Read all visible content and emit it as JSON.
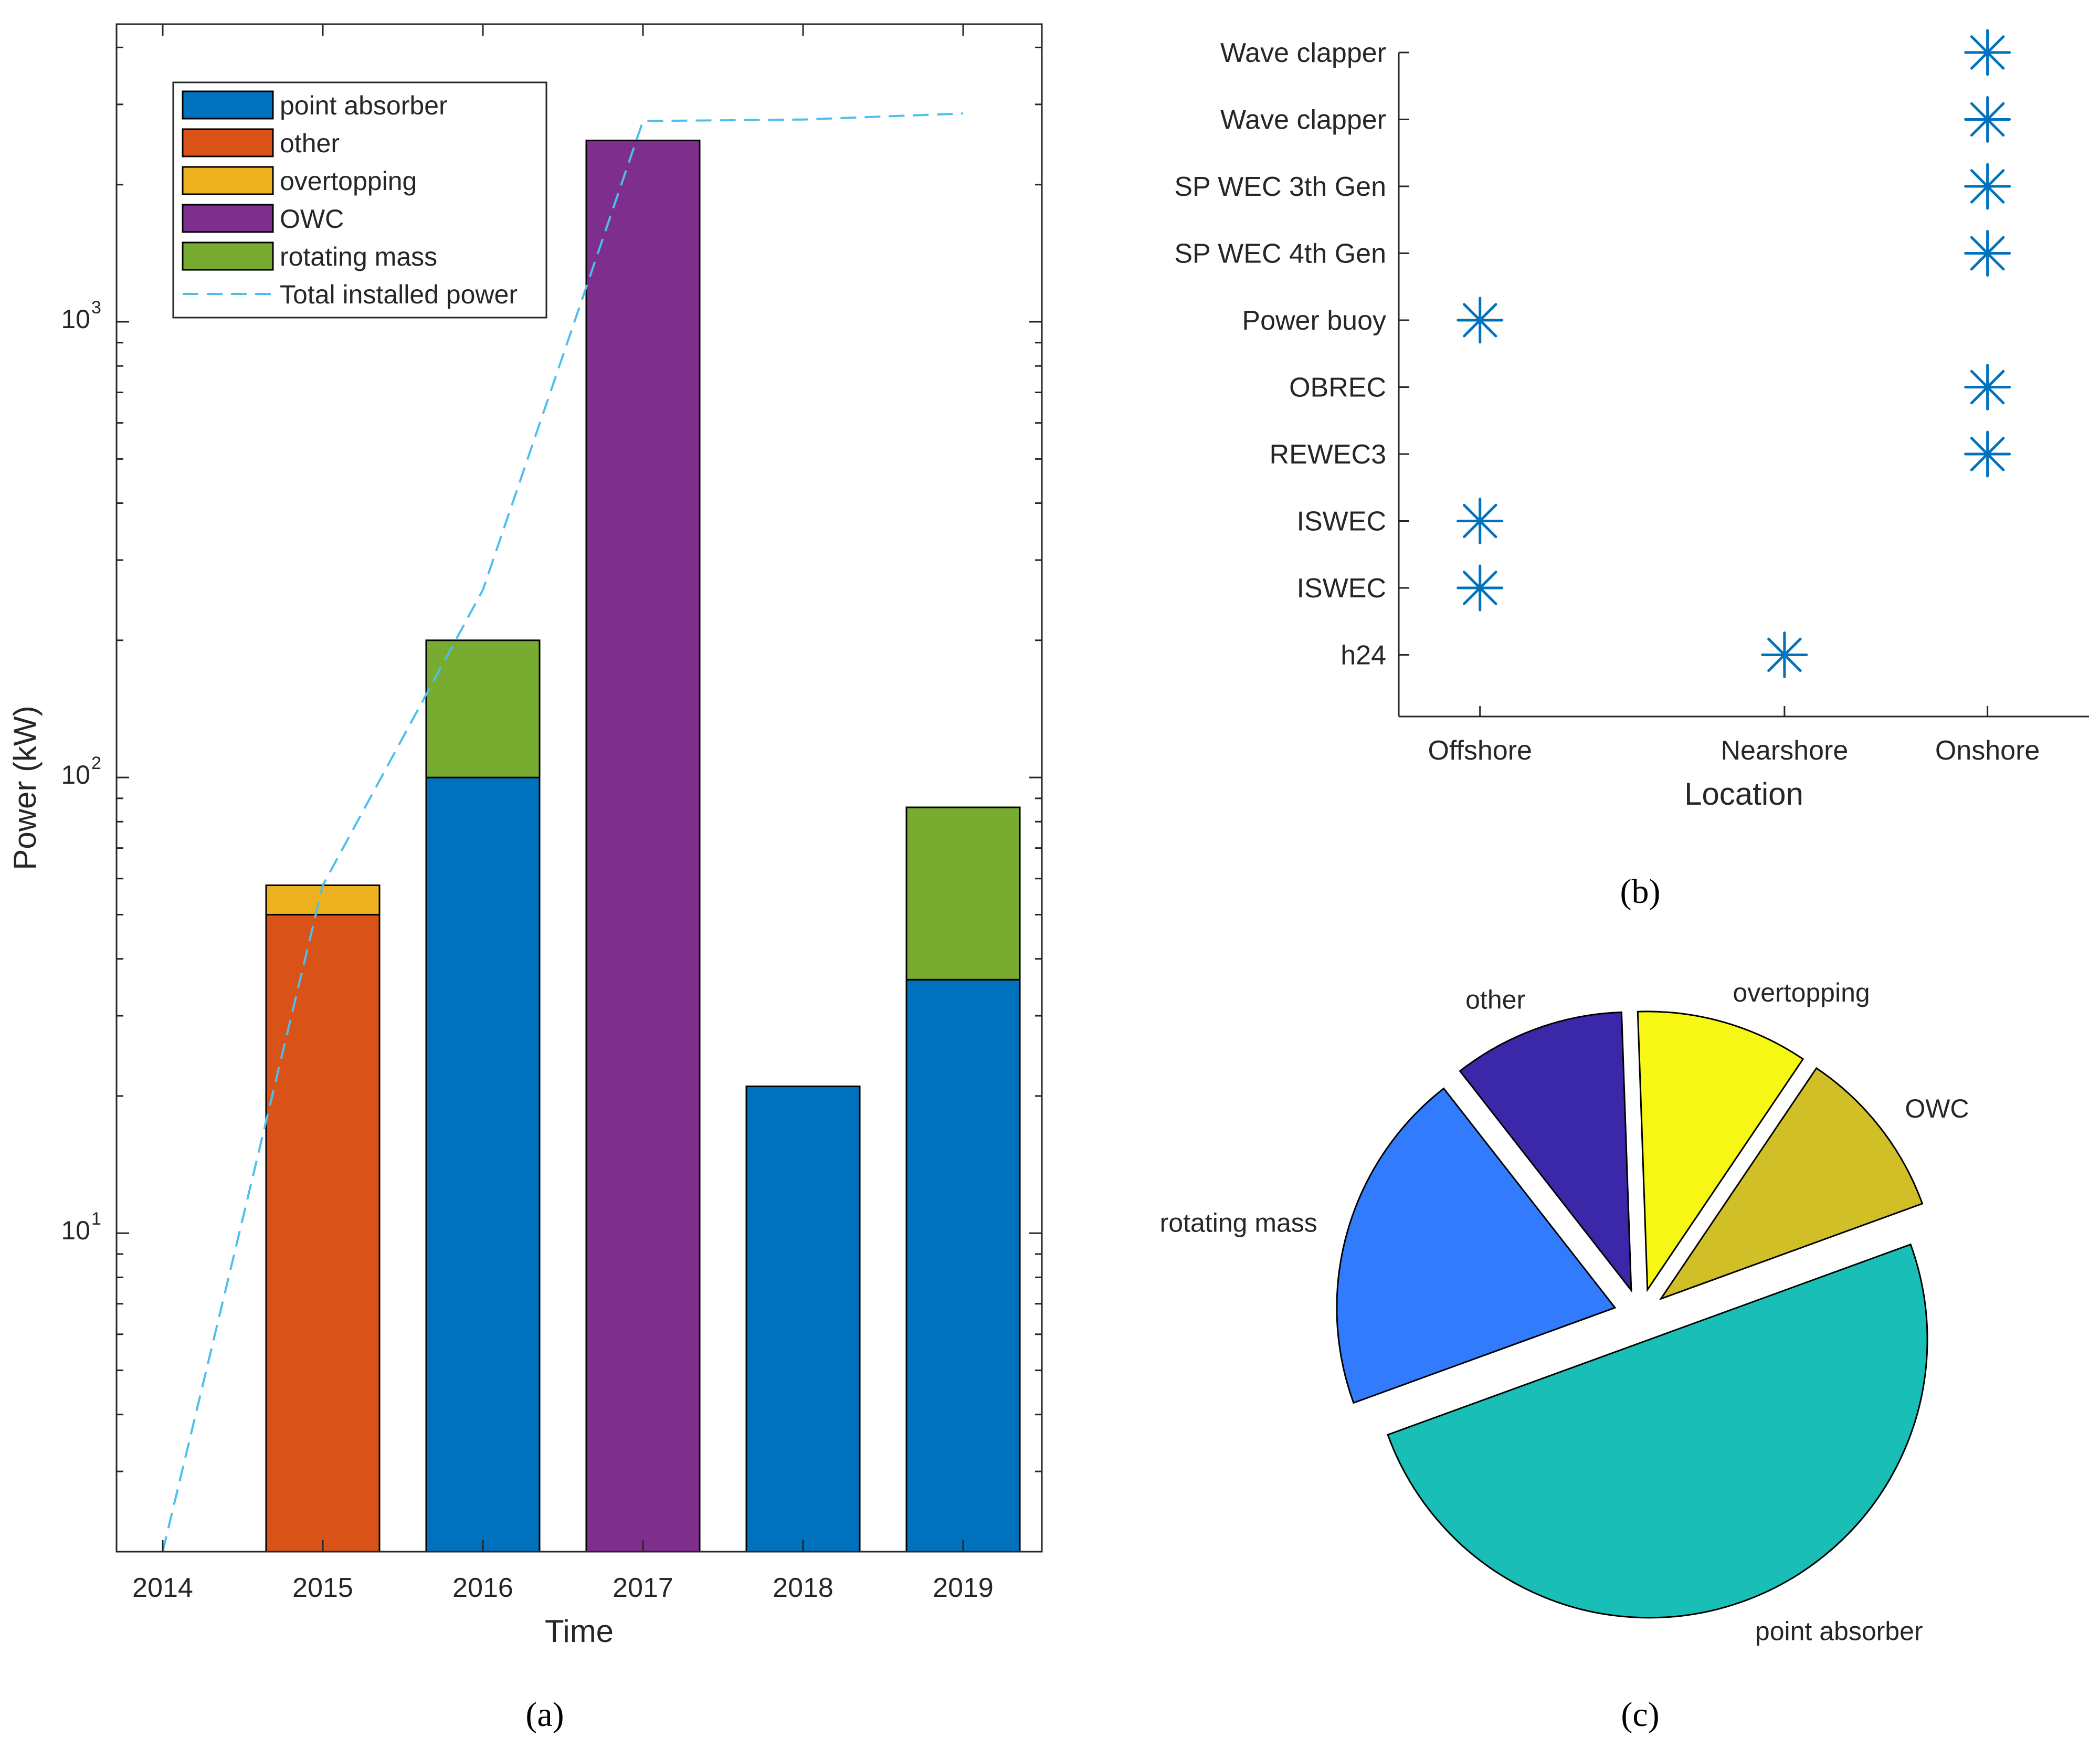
{
  "chart_data": [
    {
      "panel": "a",
      "type": "bar",
      "stacked": true,
      "yscale": "log",
      "categories": [
        "2014",
        "2015",
        "2016",
        "2017",
        "2018",
        "2019"
      ],
      "series": [
        {
          "name": "point absorber",
          "color": "#0072BD",
          "values": [
            0,
            0,
            100,
            0,
            21,
            36
          ]
        },
        {
          "name": "other",
          "color": "#D95319",
          "values": [
            0,
            50,
            0,
            0,
            0,
            0
          ]
        },
        {
          "name": "overtopping",
          "color": "#EDB120",
          "values": [
            0,
            8,
            0,
            0,
            0,
            0
          ]
        },
        {
          "name": "OWC",
          "color": "#7E2F8E",
          "values": [
            0,
            0,
            0,
            2500,
            0,
            0
          ]
        },
        {
          "name": "rotating mass",
          "color": "#77AC30",
          "values": [
            0,
            0,
            100,
            0,
            0,
            50
          ]
        }
      ],
      "line": {
        "name": "Total installed power",
        "color": "#4DBEEE",
        "style": "dashed",
        "values": [
          2,
          58,
          258,
          2758,
          2779,
          2865
        ]
      },
      "title": "",
      "xlabel": "Time",
      "ylabel": "Power (kW)",
      "ylim": [
        2,
        4500
      ],
      "ytick_labels": [
        {
          "base": "10",
          "exp": "1",
          "value": 10
        },
        {
          "base": "10",
          "exp": "2",
          "value": 100
        },
        {
          "base": "10",
          "exp": "3",
          "value": 1000
        }
      ],
      "legend_position": "top-left",
      "caption": "(a)"
    },
    {
      "panel": "b",
      "type": "scatter",
      "marker": "asterisk",
      "marker_color": "#0072BD",
      "categories_y": [
        "Wave clapper",
        "Wave clapper",
        "SP WEC 3th Gen",
        "SP WEC 4th Gen",
        "Power buoy",
        "OBREC",
        "REWEC3",
        "ISWEC",
        "ISWEC",
        "h24"
      ],
      "x_tick_labels": [
        "Offshore",
        "Nearshore",
        "Onshore"
      ],
      "x_tick_values": [
        1,
        2.5,
        3.5
      ],
      "points": [
        {
          "device": "Wave clapper",
          "x": 3.5,
          "location": "Onshore"
        },
        {
          "device": "Wave clapper",
          "x": 3.5,
          "location": "Onshore"
        },
        {
          "device": "SP WEC 3th Gen",
          "x": 3.5,
          "location": "Onshore"
        },
        {
          "device": "SP WEC 4th Gen",
          "x": 3.5,
          "location": "Onshore"
        },
        {
          "device": "Power buoy",
          "x": 1,
          "location": "Offshore"
        },
        {
          "device": "OBREC",
          "x": 3.5,
          "location": "Onshore"
        },
        {
          "device": "REWEC3",
          "x": 3.5,
          "location": "Onshore"
        },
        {
          "device": "ISWEC",
          "x": 1,
          "location": "Offshore"
        },
        {
          "device": "ISWEC",
          "x": 1,
          "location": "Offshore"
        },
        {
          "device": "h24",
          "x": 2.5,
          "location": "Nearshore"
        }
      ],
      "xlim": [
        0.6,
        4.0
      ],
      "xlabel": "Location",
      "ylabel": "",
      "caption": "(b)"
    },
    {
      "panel": "c",
      "type": "pie",
      "exploded": true,
      "slices": [
        {
          "label": "point absorber",
          "value": 50,
          "color": "#19BFB7"
        },
        {
          "label": "rotating mass",
          "value": 20,
          "color": "#317BFC"
        },
        {
          "label": "other",
          "value": 10,
          "color": "#3A28A8"
        },
        {
          "label": "overtopping",
          "value": 10,
          "color": "#F7F715"
        },
        {
          "label": "OWC",
          "value": 10,
          "color": "#D0BF26"
        }
      ],
      "caption": "(c)"
    }
  ]
}
